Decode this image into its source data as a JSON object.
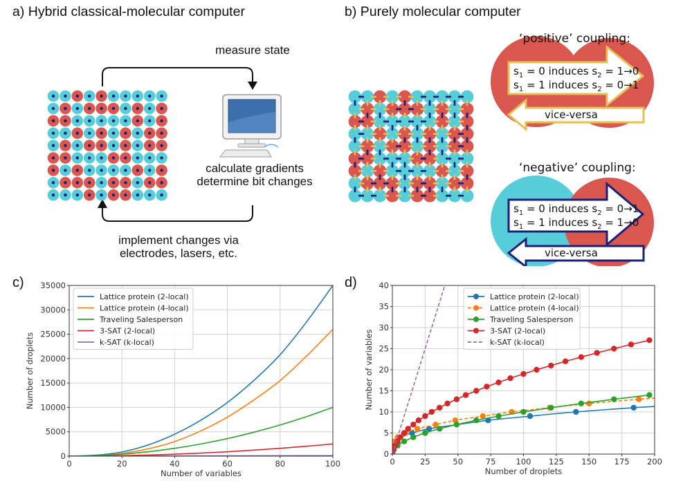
{
  "panel_a": {
    "title": "a) Hybrid classical-molecular computer",
    "measure_label": "measure state",
    "calc_label_1": "calculate gradients",
    "calc_label_2": "determine bit changes",
    "implement_label_1": "implement changes via",
    "implement_label_2": "electrodes, lasers, etc.",
    "icon": "desktop-computer-icon",
    "grid": [
      "CCRCRCCCCC",
      "CRCRRRCRCR",
      "RRCCCCCRCR",
      "CCRCRCRCRR",
      "CRCRRCRCRR",
      "RRCCCRRCCC",
      "RCRCCCCRCR",
      "CRRRCRRCRR",
      "CCCRCRRCCC"
    ]
  },
  "panel_b": {
    "title": "b) Purely molecular computer",
    "positive": {
      "title": "‘positive’ coupling:",
      "line1": {
        "a": "s",
        "a_sub": "1",
        "mid": " = 0 induces s",
        "b_sub": "2",
        "end": " = 1→0"
      },
      "line2": {
        "a": "s",
        "a_sub": "1",
        "mid": " = 1 induces s",
        "b_sub": "2",
        "end": " = 0→1"
      },
      "back": "vice-versa"
    },
    "negative": {
      "title": "‘negative’ coupling:",
      "line1": {
        "a": "s",
        "a_sub": "1",
        "mid": " = 0 induces s",
        "b_sub": "2",
        "end": " = 0→1"
      },
      "line2": {
        "a": "s",
        "a_sub": "1",
        "mid": " = 1 induces s",
        "b_sub": "2",
        "end": " = 1→0"
      },
      "back": "vice-versa"
    }
  },
  "colors": {
    "cyan": "#56cdd9",
    "red": "#d9574f",
    "navy": "#1a1f7a",
    "gold": "#e6c15a",
    "blue": "#1f77b4",
    "orange": "#ff7f0e",
    "green": "#2ca02c",
    "c_red": "#d62728",
    "purple": "#9467bd"
  },
  "chart_data": [
    {
      "label": "c)",
      "type": "line",
      "title": "",
      "xlabel": "Number of variables",
      "ylabel": "Number of droplets",
      "xlim": [
        0,
        100
      ],
      "ylim": [
        0,
        35000
      ],
      "xticks": [
        0,
        20,
        40,
        60,
        80,
        100
      ],
      "yticks": [
        0,
        5000,
        10000,
        15000,
        20000,
        25000,
        30000,
        35000
      ],
      "grid": true,
      "legend": "top-left",
      "series": [
        {
          "name": "Lattice protein (2-local)",
          "color": "#1f77b4",
          "dash": false,
          "x": [
            0,
            10,
            20,
            30,
            40,
            50,
            60,
            70,
            80,
            90,
            100
          ],
          "y": [
            0,
            200,
            850,
            2300,
            4500,
            7400,
            11000,
            15500,
            20800,
            27500,
            35000
          ]
        },
        {
          "name": "Lattice protein (4-local)",
          "color": "#ff7f0e",
          "dash": false,
          "x": [
            0,
            10,
            20,
            30,
            40,
            50,
            60,
            70,
            80,
            90,
            100
          ],
          "y": [
            0,
            100,
            550,
            1500,
            3000,
            5200,
            8000,
            11500,
            15500,
            20500,
            26000
          ]
        },
        {
          "name": "Traveling Salesperson",
          "color": "#2ca02c",
          "dash": false,
          "x": [
            0,
            10,
            20,
            30,
            40,
            50,
            60,
            70,
            80,
            90,
            100
          ],
          "y": [
            0,
            100,
            400,
            900,
            1600,
            2500,
            3600,
            4900,
            6400,
            8100,
            10000
          ]
        },
        {
          "name": "3-SAT (2-local)",
          "color": "#d62728",
          "dash": false,
          "x": [
            0,
            10,
            20,
            30,
            40,
            50,
            60,
            70,
            80,
            90,
            100
          ],
          "y": [
            0,
            25,
            100,
            225,
            400,
            625,
            900,
            1225,
            1600,
            2025,
            2500
          ]
        },
        {
          "name": "k-SAT (k-local)",
          "color": "#9467bd",
          "dash": false,
          "x": [
            0,
            100
          ],
          "y": [
            0,
            100
          ]
        }
      ]
    },
    {
      "label": "d)",
      "type": "line",
      "title": "",
      "xlabel": "Number of droplets",
      "ylabel": "Number of variables",
      "xlim": [
        0,
        200
      ],
      "ylim": [
        0,
        40
      ],
      "xticks": [
        0,
        25,
        50,
        75,
        100,
        125,
        150,
        175,
        200
      ],
      "yticks": [
        0,
        5,
        10,
        15,
        20,
        25,
        30,
        35,
        40
      ],
      "grid": true,
      "legend": "top-center",
      "series": [
        {
          "name": "Lattice protein (2-local)",
          "color": "#1f77b4",
          "dash": false,
          "markers": true,
          "x": [
            0,
            15,
            28,
            73,
            105,
            140,
            184
          ],
          "y": [
            0,
            5,
            6,
            8,
            9,
            10,
            11
          ],
          "curve_x": [
            0,
            2,
            5,
            10,
            15,
            28,
            50,
            73,
            105,
            140,
            184,
            200
          ],
          "curve_y": [
            0,
            2.2,
            3.4,
            4.5,
            5.0,
            6.0,
            7.0,
            8.0,
            9.0,
            10.0,
            11.0,
            11.3
          ]
        },
        {
          "name": "Lattice protein (4-local)",
          "color": "#ff7f0e",
          "dash": true,
          "markers": true,
          "x": [
            0,
            1,
            4,
            10,
            19,
            33,
            48,
            69,
            91,
            120,
            150,
            188
          ],
          "y": [
            0,
            3,
            4,
            5,
            6,
            7,
            8,
            9,
            10,
            11,
            12,
            13
          ],
          "curve_x": [
            0,
            1,
            4,
            10,
            19,
            33,
            48,
            69,
            91,
            120,
            150,
            188,
            200
          ],
          "curve_y": [
            0,
            3,
            4,
            5,
            6,
            7,
            8,
            9,
            10,
            11,
            12,
            13,
            13.3
          ]
        },
        {
          "name": "Traveling Salesperson",
          "color": "#2ca02c",
          "dash": false,
          "markers": true,
          "x": [
            0,
            4,
            9,
            16,
            25,
            36,
            49,
            64,
            81,
            100,
            121,
            144,
            169,
            196
          ],
          "y": [
            0,
            2,
            3,
            4,
            5,
            6,
            7,
            8,
            9,
            10,
            11,
            12,
            13,
            14
          ]
        },
        {
          "name": "3-SAT (2-local)",
          "color": "#d62728",
          "dash": false,
          "markers": true,
          "x": [
            0,
            1,
            2,
            4,
            6,
            9,
            12,
            16,
            20,
            25,
            30,
            36,
            42,
            49,
            56,
            64,
            72,
            81,
            90,
            100,
            110,
            121,
            132,
            144,
            156,
            169,
            182,
            196
          ],
          "y": [
            0,
            1,
            2,
            3,
            4,
            5,
            6,
            7,
            8,
            9,
            10,
            11,
            12,
            13,
            14,
            15,
            16,
            17,
            18,
            19,
            20,
            21,
            22,
            23,
            24,
            25,
            26,
            27
          ]
        },
        {
          "name": "k-SAT (k-local)",
          "color": "#9467bd",
          "dash": true,
          "markers": false,
          "x": [
            0,
            40
          ],
          "y": [
            0,
            40
          ]
        }
      ]
    }
  ]
}
